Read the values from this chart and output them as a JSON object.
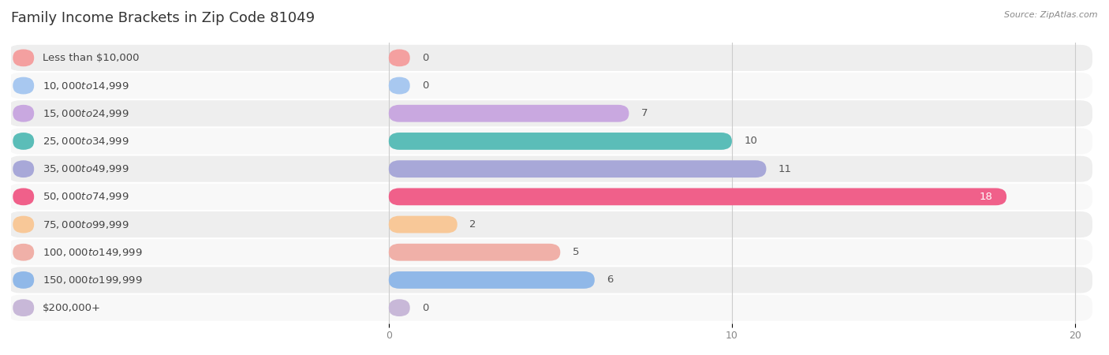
{
  "title": "Family Income Brackets in Zip Code 81049",
  "source": "Source: ZipAtlas.com",
  "categories": [
    "Less than $10,000",
    "$10,000 to $14,999",
    "$15,000 to $24,999",
    "$25,000 to $34,999",
    "$35,000 to $49,999",
    "$50,000 to $74,999",
    "$75,000 to $99,999",
    "$100,000 to $149,999",
    "$150,000 to $199,999",
    "$200,000+"
  ],
  "values": [
    0,
    0,
    7,
    10,
    11,
    18,
    2,
    5,
    6,
    0
  ],
  "bar_colors": [
    "#F4A0A0",
    "#A8C8F0",
    "#C9A8E0",
    "#5BBDB8",
    "#A8A8D8",
    "#F0608A",
    "#F8C898",
    "#F0B0A8",
    "#90B8E8",
    "#C8B8D8"
  ],
  "xlim": [
    0,
    20
  ],
  "xticks": [
    0,
    10,
    20
  ],
  "background_color": "#ffffff",
  "title_fontsize": 13,
  "label_fontsize": 9.5,
  "value_fontsize": 9.5
}
